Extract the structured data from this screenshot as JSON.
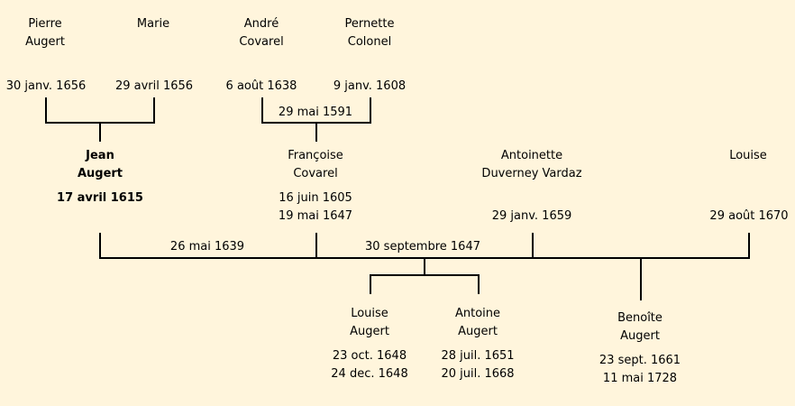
{
  "people": {
    "pierre": {
      "first": "Pierre",
      "last": "Augert",
      "birth": "30 janv. 1656"
    },
    "marie": {
      "first": "Marie",
      "birth": "29 avril 1656"
    },
    "andre": {
      "first": "André",
      "last": "Covarel",
      "birth": "6 août 1638"
    },
    "pernette": {
      "first": "Pernette",
      "last": "Colonel",
      "birth": "9 janv. 1608"
    },
    "jean": {
      "first": "Jean",
      "last": "Augert",
      "birth": "17 avril 1615"
    },
    "francoise": {
      "first": "Françoise",
      "last": "Covarel",
      "date1": "16 juin 1605",
      "date2": "19 mai 1647"
    },
    "antoinette": {
      "first": "Antoinette",
      "last": "Duverney Vardaz",
      "date1": "29 janv. 1659"
    },
    "louise_top": {
      "first": "Louise",
      "date1": "29 août 1670"
    },
    "louise": {
      "first": "Louise",
      "last": "Augert",
      "date1": "23 oct. 1648",
      "date2": "24 dec. 1648"
    },
    "antoine": {
      "first": "Antoine",
      "last": "Augert",
      "date1": "28 juil. 1651",
      "date2": "20 juil. 1668"
    },
    "benoite": {
      "first": "Benoîte",
      "last": "Augert",
      "date1": "23 sept. 1661",
      "date2": "11 mai 1728"
    }
  },
  "marriages": {
    "covarel_colonel": "29 mai 1591",
    "jean_francoise": "26 mai 1639",
    "second": "30 septembre 1647"
  }
}
